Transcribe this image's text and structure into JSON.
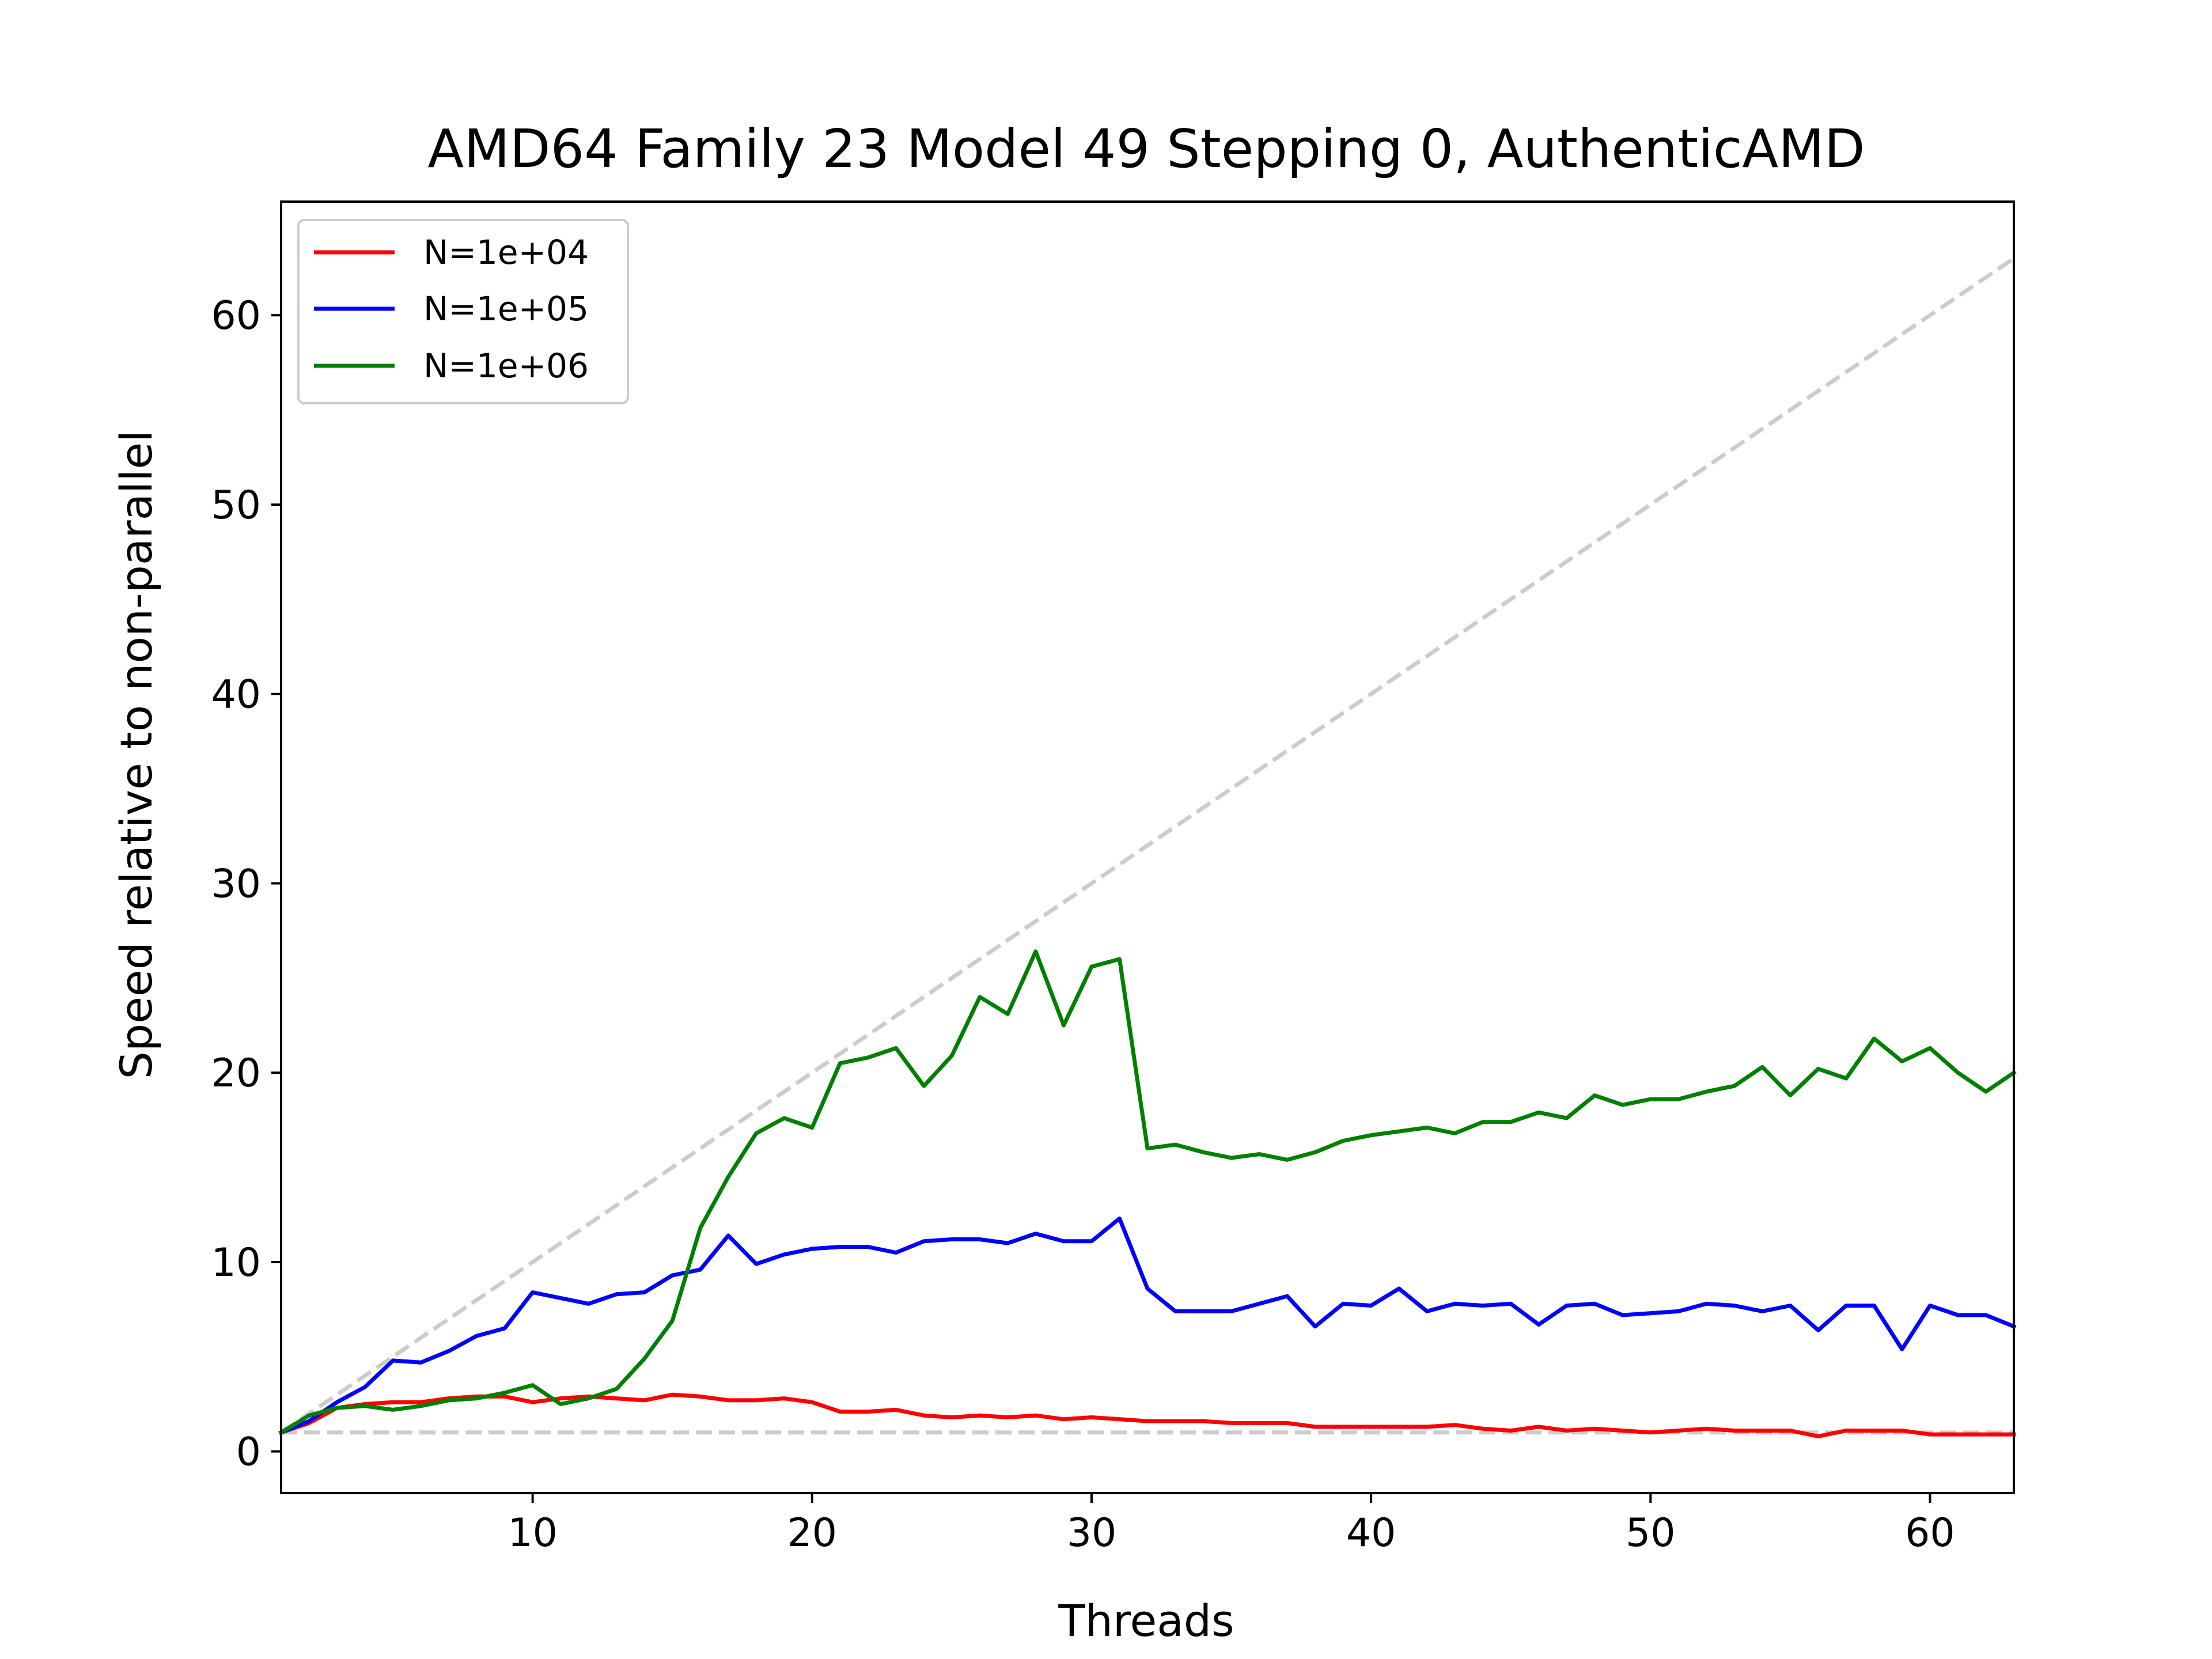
{
  "chart_data": {
    "type": "line",
    "title": "AMD64 Family 23 Model 49 Stepping 0, AuthenticAMD",
    "xlabel": "Threads",
    "ylabel": "Speed relative to non-parallel",
    "xlim": [
      1,
      63
    ],
    "ylim": [
      -2.2,
      66
    ],
    "xticks": [
      10,
      20,
      30,
      40,
      50,
      60
    ],
    "yticks": [
      0,
      10,
      20,
      30,
      40,
      50,
      60
    ],
    "grid": false,
    "legend_position": "upper-left",
    "x": [
      1,
      2,
      3,
      4,
      5,
      6,
      7,
      8,
      9,
      10,
      11,
      12,
      13,
      14,
      15,
      16,
      17,
      18,
      19,
      20,
      21,
      22,
      23,
      24,
      25,
      26,
      27,
      28,
      29,
      30,
      31,
      32,
      33,
      34,
      35,
      36,
      37,
      38,
      39,
      40,
      41,
      42,
      43,
      44,
      45,
      46,
      47,
      48,
      49,
      50,
      51,
      52,
      53,
      54,
      55,
      56,
      57,
      58,
      59,
      60,
      61,
      62,
      63
    ],
    "series": [
      {
        "name": "N=1e+04",
        "color": "#ff0000",
        "values": [
          1.0,
          1.5,
          2.3,
          2.5,
          2.6,
          2.6,
          2.8,
          2.9,
          2.9,
          2.6,
          2.8,
          2.9,
          2.8,
          2.7,
          3.0,
          2.9,
          2.7,
          2.7,
          2.8,
          2.6,
          2.1,
          2.1,
          2.2,
          1.9,
          1.8,
          1.9,
          1.8,
          1.9,
          1.7,
          1.8,
          1.7,
          1.6,
          1.6,
          1.6,
          1.5,
          1.5,
          1.5,
          1.3,
          1.3,
          1.3,
          1.3,
          1.3,
          1.4,
          1.2,
          1.1,
          1.3,
          1.1,
          1.2,
          1.1,
          1.0,
          1.1,
          1.2,
          1.1,
          1.1,
          1.1,
          0.8,
          1.1,
          1.1,
          1.1,
          0.9,
          0.9,
          0.9,
          0.9
        ]
      },
      {
        "name": "N=1e+05",
        "color": "#0000ff",
        "values": [
          1.0,
          1.6,
          2.6,
          3.4,
          4.8,
          4.7,
          5.3,
          6.1,
          6.5,
          8.4,
          8.1,
          7.8,
          8.3,
          8.4,
          9.3,
          9.6,
          11.4,
          9.9,
          10.4,
          10.7,
          10.8,
          10.8,
          10.5,
          11.1,
          11.2,
          11.2,
          11.0,
          11.5,
          11.1,
          11.1,
          12.3,
          8.6,
          7.4,
          7.4,
          7.4,
          7.8,
          8.2,
          6.6,
          7.8,
          7.7,
          8.6,
          7.4,
          7.8,
          7.7,
          7.8,
          6.7,
          7.7,
          7.8,
          7.2,
          7.3,
          7.4,
          7.8,
          7.7,
          7.4,
          7.7,
          6.4,
          7.7,
          7.7,
          5.4,
          7.7,
          7.2,
          7.2,
          6.6
        ]
      },
      {
        "name": "N=1e+06",
        "color": "#008000",
        "values": [
          1.0,
          1.9,
          2.3,
          2.4,
          2.2,
          2.4,
          2.7,
          2.8,
          3.1,
          3.5,
          2.5,
          2.8,
          3.3,
          4.9,
          6.9,
          11.8,
          14.5,
          16.8,
          17.6,
          17.1,
          20.5,
          20.8,
          21.3,
          19.3,
          20.9,
          24.0,
          23.1,
          26.4,
          22.5,
          25.6,
          26.0,
          16.0,
          16.2,
          15.8,
          15.5,
          15.7,
          15.4,
          15.8,
          16.4,
          16.7,
          16.9,
          17.1,
          16.8,
          17.4,
          17.4,
          17.9,
          17.6,
          18.8,
          18.3,
          18.6,
          18.6,
          19.0,
          19.3,
          20.3,
          18.8,
          20.2,
          19.7,
          21.8,
          20.6,
          21.3,
          20.0,
          19.0,
          20.0
        ]
      },
      {
        "name": "",
        "color": "#cccccc",
        "dashed": true,
        "values": [
          1,
          2,
          3,
          4,
          5,
          6,
          7,
          8,
          9,
          10,
          11,
          12,
          13,
          14,
          15,
          16,
          17,
          18,
          19,
          20,
          21,
          22,
          23,
          24,
          25,
          26,
          27,
          28,
          29,
          30,
          31,
          32,
          33,
          34,
          35,
          36,
          37,
          38,
          39,
          40,
          41,
          42,
          43,
          44,
          45,
          46,
          47,
          48,
          49,
          50,
          51,
          52,
          53,
          54,
          55,
          56,
          57,
          58,
          59,
          60,
          61,
          62,
          63
        ]
      },
      {
        "name": "",
        "color": "#cccccc",
        "dashed": true,
        "values": [
          1,
          1,
          1,
          1,
          1,
          1,
          1,
          1,
          1,
          1,
          1,
          1,
          1,
          1,
          1,
          1,
          1,
          1,
          1,
          1,
          1,
          1,
          1,
          1,
          1,
          1,
          1,
          1,
          1,
          1,
          1,
          1,
          1,
          1,
          1,
          1,
          1,
          1,
          1,
          1,
          1,
          1,
          1,
          1,
          1,
          1,
          1,
          1,
          1,
          1,
          1,
          1,
          1,
          1,
          1,
          1,
          1,
          1,
          1,
          1,
          1,
          1,
          1
        ]
      }
    ]
  }
}
